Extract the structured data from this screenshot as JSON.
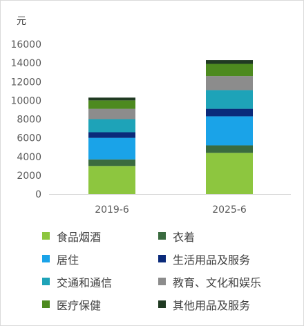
{
  "chart_data": {
    "type": "bar",
    "stacked": true,
    "unit_label": "元",
    "categories": [
      "2019-6",
      "2025-6"
    ],
    "ylim": [
      0,
      16000
    ],
    "yticks": [
      0,
      2000,
      4000,
      6000,
      8000,
      10000,
      12000,
      14000,
      16000
    ],
    "grid": false,
    "legend_position": "bottom",
    "series": [
      {
        "name": "食品烟酒",
        "color": "#8dc63f",
        "values": [
          3000,
          4400
        ]
      },
      {
        "name": "衣着",
        "color": "#3a6b3f",
        "values": [
          700,
          800
        ]
      },
      {
        "name": "居住",
        "color": "#1aa3e8",
        "values": [
          2300,
          3100
        ]
      },
      {
        "name": "生活用品及服务",
        "color": "#0a2a7a",
        "values": [
          600,
          800
        ]
      },
      {
        "name": "交通和通信",
        "color": "#1ea3b8",
        "values": [
          1400,
          2000
        ]
      },
      {
        "name": "教育、文化和娱乐",
        "color": "#8c8c8c",
        "values": [
          1100,
          1500
        ]
      },
      {
        "name": "医疗保健",
        "color": "#4d8a1f",
        "values": [
          900,
          1300
        ]
      },
      {
        "name": "其他用品及服务",
        "color": "#203a22",
        "values": [
          300,
          400
        ]
      }
    ]
  }
}
